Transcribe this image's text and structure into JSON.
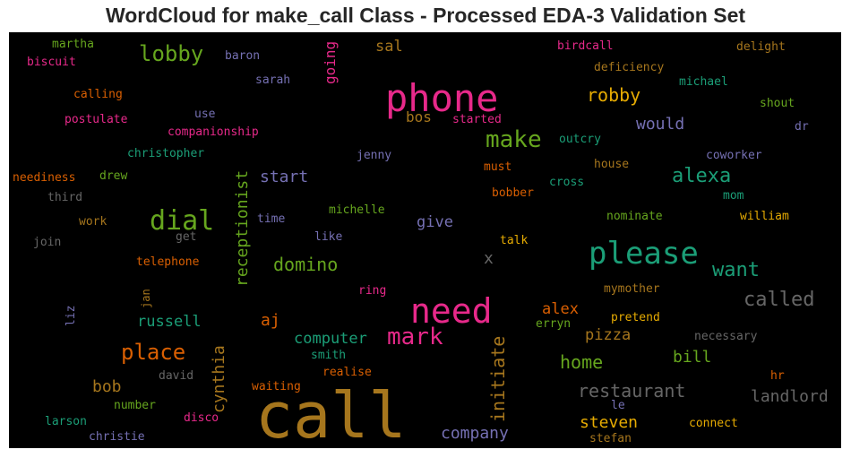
{
  "chart_data": {
    "type": "wordcloud",
    "title": "WordCloud for make_call Class - Processed EDA-3 Validation Set",
    "background": "#000000",
    "colormap": [
      "#1b9e77",
      "#d95f02",
      "#7570b3",
      "#e7298a",
      "#66a61e",
      "#e6ab02",
      "#a6761d",
      "#666666"
    ],
    "words": [
      {
        "text": "call",
        "color": "#a6761d"
      },
      {
        "text": "phone",
        "color": "#e7298a"
      },
      {
        "text": "need",
        "color": "#e7298a"
      },
      {
        "text": "please",
        "color": "#1b9e77"
      },
      {
        "text": "dial",
        "color": "#66a61e"
      },
      {
        "text": "make",
        "color": "#66a61e"
      },
      {
        "text": "mark",
        "color": "#e7298a"
      },
      {
        "text": "lobby",
        "color": "#66a61e"
      },
      {
        "text": "place",
        "color": "#d95f02"
      },
      {
        "text": "alexa",
        "color": "#1b9e77"
      },
      {
        "text": "want",
        "color": "#1b9e77"
      },
      {
        "text": "restaurant",
        "color": "#666666"
      },
      {
        "text": "initiate",
        "color": "#a6761d"
      },
      {
        "text": "receptionist",
        "color": "#66a61e"
      },
      {
        "text": "called",
        "color": "#666666"
      },
      {
        "text": "robby",
        "color": "#e6ab02"
      },
      {
        "text": "domino",
        "color": "#66a61e"
      },
      {
        "text": "cynthia",
        "color": "#a6761d"
      },
      {
        "text": "company",
        "color": "#7570b3"
      },
      {
        "text": "home",
        "color": "#66a61e"
      },
      {
        "text": "landlord",
        "color": "#666666"
      },
      {
        "text": "steven",
        "color": "#e6ab02"
      },
      {
        "text": "would",
        "color": "#7570b3"
      },
      {
        "text": "computer",
        "color": "#1b9e77"
      },
      {
        "text": "pizza",
        "color": "#a6761d"
      },
      {
        "text": "going",
        "color": "#e7298a"
      },
      {
        "text": "aj",
        "color": "#d95f02"
      },
      {
        "text": "start",
        "color": "#7570b3"
      },
      {
        "text": "give",
        "color": "#7570b3"
      },
      {
        "text": "bill",
        "color": "#66a61e"
      },
      {
        "text": "bob",
        "color": "#a6761d"
      },
      {
        "text": "russell",
        "color": "#1b9e77"
      },
      {
        "text": "alex",
        "color": "#d95f02"
      },
      {
        "text": "sal",
        "color": "#a6761d"
      },
      {
        "text": "bos",
        "color": "#a6761d"
      },
      {
        "text": "x",
        "color": "#666666"
      },
      {
        "text": "martha",
        "color": "#66a61e"
      },
      {
        "text": "biscuit",
        "color": "#e7298a"
      },
      {
        "text": "baron",
        "color": "#7570b3"
      },
      {
        "text": "sarah",
        "color": "#7570b3"
      },
      {
        "text": "birdcall",
        "color": "#e7298a"
      },
      {
        "text": "delight",
        "color": "#a6761d"
      },
      {
        "text": "deficiency",
        "color": "#a6761d"
      },
      {
        "text": "michael",
        "color": "#1b9e77"
      },
      {
        "text": "calling",
        "color": "#d95f02"
      },
      {
        "text": "shout",
        "color": "#66a61e"
      },
      {
        "text": "use",
        "color": "#7570b3"
      },
      {
        "text": "postulate",
        "color": "#e7298a"
      },
      {
        "text": "started",
        "color": "#e7298a"
      },
      {
        "text": "dr",
        "color": "#7570b3"
      },
      {
        "text": "companionship",
        "color": "#e7298a"
      },
      {
        "text": "outcry",
        "color": "#1b9e77"
      },
      {
        "text": "christopher",
        "color": "#1b9e77"
      },
      {
        "text": "jenny",
        "color": "#7570b3"
      },
      {
        "text": "coworker",
        "color": "#7570b3"
      },
      {
        "text": "must",
        "color": "#d95f02"
      },
      {
        "text": "house",
        "color": "#a6761d"
      },
      {
        "text": "neediness",
        "color": "#d95f02"
      },
      {
        "text": "drew",
        "color": "#66a61e"
      },
      {
        "text": "mom",
        "color": "#1b9e77"
      },
      {
        "text": "third",
        "color": "#666666"
      },
      {
        "text": "cross",
        "color": "#1b9e77"
      },
      {
        "text": "bobber",
        "color": "#d95f02"
      },
      {
        "text": "michelle",
        "color": "#66a61e"
      },
      {
        "text": "nominate",
        "color": "#66a61e"
      },
      {
        "text": "william",
        "color": "#e6ab02"
      },
      {
        "text": "work",
        "color": "#a6761d"
      },
      {
        "text": "time",
        "color": "#7570b3"
      },
      {
        "text": "get",
        "color": "#666666"
      },
      {
        "text": "like",
        "color": "#7570b3"
      },
      {
        "text": "join",
        "color": "#666666"
      },
      {
        "text": "talk",
        "color": "#e6ab02"
      },
      {
        "text": "telephone",
        "color": "#d95f02"
      },
      {
        "text": "jan",
        "color": "#a6761d"
      },
      {
        "text": "ring",
        "color": "#e7298a"
      },
      {
        "text": "mymother",
        "color": "#a6761d"
      },
      {
        "text": "liz",
        "color": "#7570b3"
      },
      {
        "text": "erryn",
        "color": "#66a61e"
      },
      {
        "text": "pretend",
        "color": "#e6ab02"
      },
      {
        "text": "necessary",
        "color": "#666666"
      },
      {
        "text": "smith",
        "color": "#1b9e77"
      },
      {
        "text": "david",
        "color": "#666666"
      },
      {
        "text": "realise",
        "color": "#d95f02"
      },
      {
        "text": "hr",
        "color": "#d95f02"
      },
      {
        "text": "waiting",
        "color": "#d95f02"
      },
      {
        "text": "number",
        "color": "#66a61e"
      },
      {
        "text": "le",
        "color": "#7570b3"
      },
      {
        "text": "larson",
        "color": "#1b9e77"
      },
      {
        "text": "disco",
        "color": "#e7298a"
      },
      {
        "text": "connect",
        "color": "#e6ab02"
      },
      {
        "text": "christie",
        "color": "#7570b3"
      },
      {
        "text": "stefan",
        "color": "#a6761d"
      }
    ]
  }
}
